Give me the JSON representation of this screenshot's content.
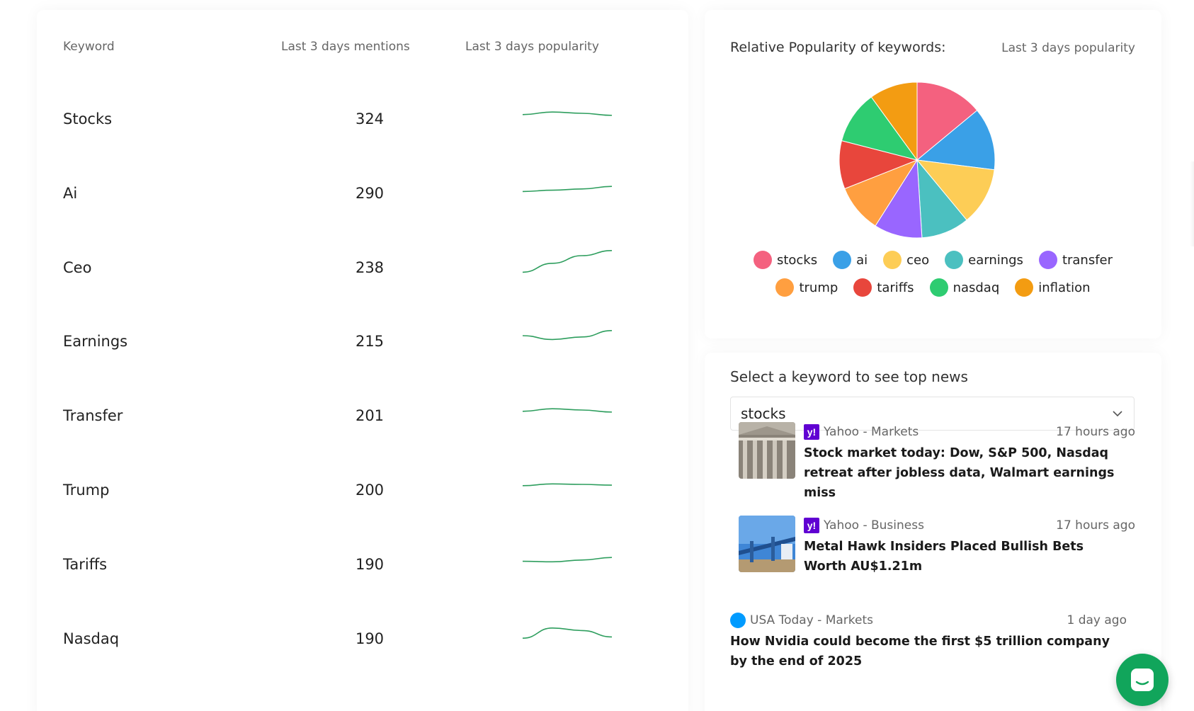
{
  "table": {
    "headers": {
      "keyword": "Keyword",
      "mentions": "Last 3 days mentions",
      "popularity": "Last 3 days popularity"
    },
    "rows": [
      {
        "keyword": "Stocks",
        "mentions": "324",
        "trend": [
          0.45,
          0.55,
          0.5,
          0.42
        ]
      },
      {
        "keyword": "Ai",
        "mentions": "290",
        "trend": [
          0.35,
          0.4,
          0.45,
          0.55
        ]
      },
      {
        "keyword": "Ceo",
        "mentions": "238",
        "trend": [
          0.1,
          0.45,
          0.75,
          0.95
        ]
      },
      {
        "keyword": "Earnings",
        "mentions": "215",
        "trend": [
          0.5,
          0.35,
          0.45,
          0.7
        ]
      },
      {
        "keyword": "Transfer",
        "mentions": "201",
        "trend": [
          0.45,
          0.55,
          0.5,
          0.42
        ]
      },
      {
        "keyword": "Trump",
        "mentions": "200",
        "trend": [
          0.45,
          0.52,
          0.5,
          0.47
        ]
      },
      {
        "keyword": "Tariffs",
        "mentions": "190",
        "trend": [
          0.4,
          0.38,
          0.45,
          0.55
        ]
      },
      {
        "keyword": "Nasdaq",
        "mentions": "190",
        "trend": [
          0.3,
          0.7,
          0.6,
          0.35
        ]
      }
    ]
  },
  "pie_panel": {
    "title": "Relative Popularity of keywords:",
    "subtitle": "Last 3 days popularity"
  },
  "chart_data": {
    "type": "pie",
    "title": "Relative Popularity of keywords:",
    "legend_placement": "bottom",
    "slices": [
      {
        "label": "stocks",
        "value": 14,
        "color": "#f4617f"
      },
      {
        "label": "ai",
        "value": 13,
        "color": "#3aa0e7"
      },
      {
        "label": "ceo",
        "value": 12,
        "color": "#fdcd56"
      },
      {
        "label": "earnings",
        "value": 10,
        "color": "#4bc0c0"
      },
      {
        "label": "transfer",
        "value": 10,
        "color": "#9966ff"
      },
      {
        "label": "trump",
        "value": 10,
        "color": "#ff9f40"
      },
      {
        "label": "tariffs",
        "value": 10,
        "color": "#e8463c"
      },
      {
        "label": "nasdaq",
        "value": 11,
        "color": "#2ecc71"
      },
      {
        "label": "inflation",
        "value": 10,
        "color": "#f39c12"
      }
    ]
  },
  "news": {
    "title": "Select a keyword to see top news",
    "selected": "stocks",
    "items": [
      {
        "source": "Yahoo - Markets",
        "time": "17 hours ago",
        "headline": "Stock market today: Dow, S&P 500, Nasdaq retreat after jobless data, Walmart earnings miss",
        "logo": "y!"
      },
      {
        "source": "Yahoo - Business",
        "time": "17 hours ago",
        "headline": "Metal Hawk Insiders Placed Bullish Bets Worth AU$1.21m",
        "logo": "y!"
      },
      {
        "source": "USA Today - Markets",
        "time": "1 day ago",
        "headline": "How Nvidia could become the first $5 trillion company by the end of 2025"
      }
    ]
  },
  "colors": {
    "accent_green": "#11a55b",
    "spark_green": "#2e9e5e"
  }
}
